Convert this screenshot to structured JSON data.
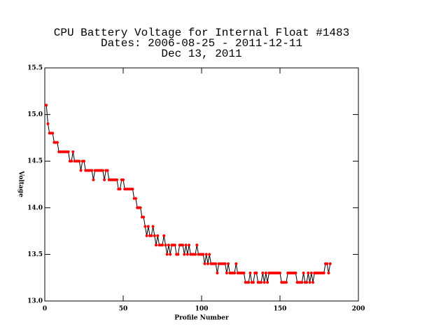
{
  "chart_data": {
    "type": "line",
    "title": [
      "CPU Battery Voltage for Internal Float #1483",
      "Dates:  2006-08-25 -  2011-12-11",
      "Dec 13, 2011"
    ],
    "x_label": "Profile Number",
    "y_label": "Voltage",
    "x": [
      1,
      2,
      3,
      4,
      5,
      6,
      7,
      8,
      9,
      10,
      11,
      12,
      13,
      14,
      15,
      16,
      17,
      18,
      19,
      20,
      21,
      22,
      23,
      24,
      25,
      26,
      27,
      28,
      29,
      30,
      31,
      32,
      33,
      34,
      35,
      36,
      37,
      38,
      39,
      40,
      41,
      42,
      43,
      44,
      45,
      46,
      47,
      48,
      49,
      50,
      51,
      52,
      53,
      54,
      55,
      56,
      57,
      58,
      59,
      60,
      61,
      62,
      63,
      64,
      65,
      66,
      67,
      68,
      69,
      70,
      71,
      72,
      73,
      74,
      75,
      76,
      77,
      78,
      79,
      80,
      81,
      82,
      83,
      84,
      85,
      86,
      87,
      88,
      89,
      90,
      91,
      92,
      93,
      94,
      95,
      96,
      97,
      98,
      99,
      100,
      101,
      102,
      103,
      104,
      105,
      106,
      107,
      108,
      109,
      110,
      111,
      112,
      113,
      114,
      115,
      116,
      117,
      118,
      119,
      120,
      121,
      122,
      123,
      124,
      125,
      126,
      127,
      128,
      129,
      130,
      131,
      132,
      133,
      134,
      135,
      136,
      137,
      138,
      139,
      140,
      141,
      142,
      143,
      144,
      145,
      146,
      147,
      148,
      149,
      150,
      151,
      152,
      153,
      154,
      155,
      156,
      157,
      158,
      159,
      160,
      161,
      162,
      163,
      164,
      165,
      166,
      167,
      168,
      169,
      170,
      171,
      172,
      173,
      174,
      175,
      176,
      177,
      178,
      179,
      180,
      181,
      182
    ],
    "series": [
      {
        "name": "Voltage",
        "color": "#ff0000",
        "line_color": "#000000",
        "values": [
          15.1,
          14.9,
          14.8,
          14.8,
          14.8,
          14.7,
          14.7,
          14.7,
          14.6,
          14.6,
          14.6,
          14.6,
          14.6,
          14.6,
          14.6,
          14.5,
          14.5,
          14.6,
          14.5,
          14.5,
          14.5,
          14.5,
          14.4,
          14.5,
          14.5,
          14.4,
          14.4,
          14.4,
          14.4,
          14.4,
          14.3,
          14.4,
          14.4,
          14.4,
          14.4,
          14.4,
          14.4,
          14.3,
          14.4,
          14.4,
          14.3,
          14.3,
          14.3,
          14.3,
          14.3,
          14.3,
          14.2,
          14.2,
          14.3,
          14.3,
          14.2,
          14.2,
          14.2,
          14.2,
          14.2,
          14.2,
          14.1,
          14.1,
          14.0,
          14.0,
          14.0,
          13.9,
          13.9,
          13.8,
          13.7,
          13.8,
          13.7,
          13.7,
          13.8,
          13.7,
          13.6,
          13.7,
          13.6,
          13.6,
          13.6,
          13.7,
          13.6,
          13.5,
          13.6,
          13.5,
          13.6,
          13.6,
          13.6,
          13.5,
          13.5,
          13.6,
          13.6,
          13.6,
          13.5,
          13.6,
          13.5,
          13.6,
          13.5,
          13.5,
          13.5,
          13.5,
          13.6,
          13.5,
          13.5,
          13.5,
          13.5,
          13.4,
          13.5,
          13.4,
          13.5,
          13.4,
          13.4,
          13.4,
          13.4,
          13.3,
          13.4,
          13.4,
          13.4,
          13.4,
          13.4,
          13.3,
          13.4,
          13.3,
          13.3,
          13.3,
          13.3,
          13.4,
          13.3,
          13.3,
          13.3,
          13.3,
          13.3,
          13.2,
          13.2,
          13.2,
          13.3,
          13.2,
          13.2,
          13.3,
          13.3,
          13.2,
          13.2,
          13.2,
          13.3,
          13.2,
          13.3,
          13.2,
          13.3,
          13.3,
          13.3,
          13.3,
          13.3,
          13.3,
          13.3,
          13.3,
          13.2,
          13.2,
          13.2,
          13.2,
          13.3,
          13.3,
          13.3,
          13.3,
          13.3,
          13.3,
          13.2,
          13.2,
          13.2,
          13.2,
          13.3,
          13.2,
          13.2,
          13.3,
          13.2,
          13.3,
          13.2,
          13.3,
          13.3,
          13.3,
          13.3,
          13.3,
          13.3,
          13.3,
          13.4,
          13.4,
          13.3,
          13.4
        ]
      }
    ],
    "xlim": [
      0,
      200
    ],
    "xticks": [
      0,
      50,
      100,
      150,
      200
    ],
    "ylim": [
      13.0,
      15.5
    ],
    "yticks": [
      {
        "value": 13.0,
        "label": "13.0"
      },
      13.5,
      {
        "value": 14.0,
        "label": "14.0"
      },
      14.5,
      {
        "value": 15.0,
        "label": "15.0"
      },
      15.5
    ]
  }
}
